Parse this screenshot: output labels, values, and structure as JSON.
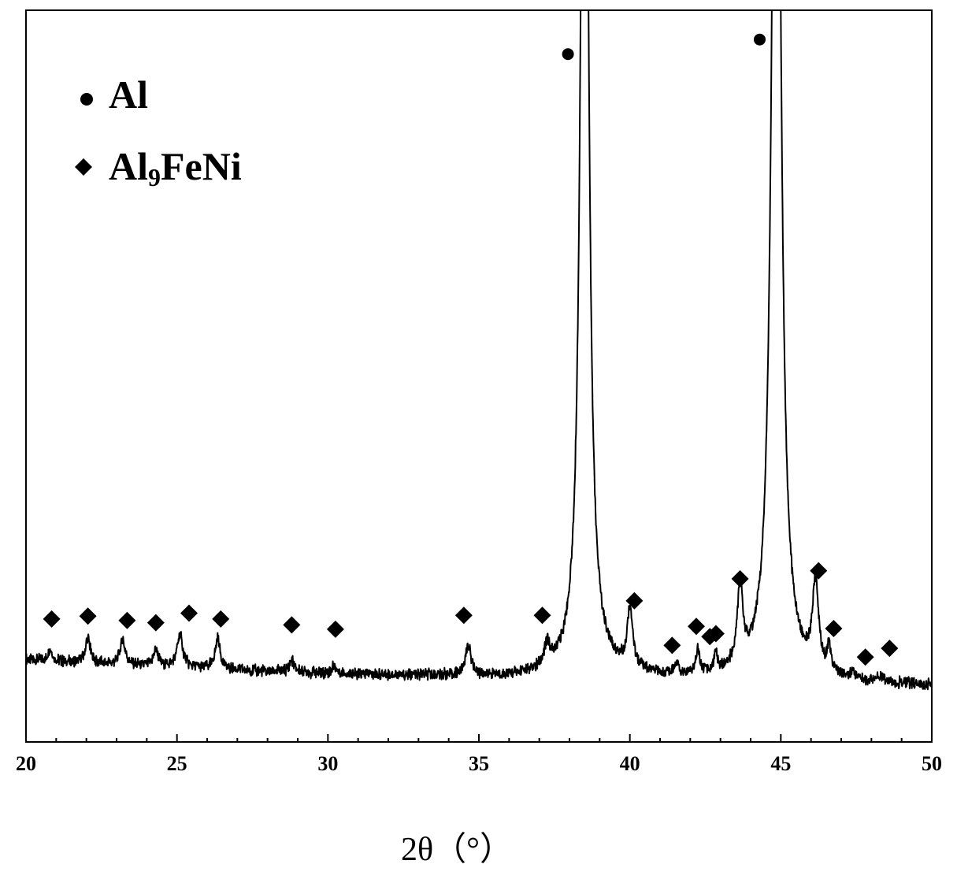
{
  "chart_data": {
    "type": "line",
    "title": "",
    "xlabel": "2θ（°）",
    "ylabel": "",
    "xlim": [
      20,
      50
    ],
    "ylim": [
      0,
      100
    ],
    "x_ticks": [
      20,
      25,
      30,
      35,
      40,
      45,
      50
    ],
    "x_minor_step": 1,
    "y_ticks_visible": false,
    "grid": false,
    "legend_position": "top-left",
    "legend": [
      {
        "marker": "circle",
        "label": "Al",
        "label_parts": [
          "Al"
        ]
      },
      {
        "marker": "diamond",
        "label": "Al9FeNi",
        "label_parts": [
          "Al",
          "9",
          "FeNi"
        ]
      }
    ],
    "background": [
      [
        20.0,
        11.2
      ],
      [
        21.0,
        11.0
      ],
      [
        22.0,
        10.8
      ],
      [
        23.0,
        10.5
      ],
      [
        24.0,
        10.3
      ],
      [
        25.0,
        10.2
      ],
      [
        26.0,
        10.0
      ],
      [
        27.0,
        9.8
      ],
      [
        28.0,
        9.6
      ],
      [
        29.0,
        9.5
      ],
      [
        30.0,
        9.3
      ],
      [
        31.0,
        9.2
      ],
      [
        32.0,
        9.1
      ],
      [
        33.0,
        9.0
      ],
      [
        34.0,
        9.0
      ],
      [
        35.0,
        8.9
      ],
      [
        36.0,
        8.8
      ],
      [
        37.0,
        8.8
      ],
      [
        38.0,
        9.0
      ],
      [
        38.6,
        9.6
      ],
      [
        39.0,
        9.4
      ],
      [
        40.0,
        9.0
      ],
      [
        41.0,
        8.7
      ],
      [
        42.0,
        8.6
      ],
      [
        43.0,
        8.6
      ],
      [
        44.0,
        8.5
      ],
      [
        44.8,
        8.8
      ],
      [
        45.5,
        8.6
      ],
      [
        46.0,
        8.3
      ],
      [
        47.0,
        8.1
      ],
      [
        48.0,
        7.9
      ],
      [
        49.0,
        7.8
      ],
      [
        50.0,
        7.7
      ]
    ],
    "peaks": [
      {
        "x": 20.8,
        "height": 1.6,
        "width": 0.08
      },
      {
        "x": 22.05,
        "height": 3.5,
        "width": 0.09
      },
      {
        "x": 23.2,
        "height": 3.6,
        "width": 0.1
      },
      {
        "x": 24.3,
        "height": 2.3,
        "width": 0.1
      },
      {
        "x": 25.1,
        "height": 4.4,
        "width": 0.11
      },
      {
        "x": 26.35,
        "height": 4.2,
        "width": 0.1
      },
      {
        "x": 28.8,
        "height": 1.6,
        "width": 0.09
      },
      {
        "x": 30.2,
        "height": 1.2,
        "width": 0.08
      },
      {
        "x": 34.65,
        "height": 4.2,
        "width": 0.11
      },
      {
        "x": 37.25,
        "height": 3.0,
        "width": 0.12
      },
      {
        "x": 38.5,
        "height": 170,
        "width": 0.14
      },
      {
        "x": 40.0,
        "height": 8.0,
        "width": 0.11
      },
      {
        "x": 41.55,
        "height": 1.6,
        "width": 0.07
      },
      {
        "x": 42.25,
        "height": 3.5,
        "width": 0.07
      },
      {
        "x": 42.85,
        "height": 2.4,
        "width": 0.07
      },
      {
        "x": 43.65,
        "height": 10.8,
        "width": 0.11
      },
      {
        "x": 44.85,
        "height": 170,
        "width": 0.16
      },
      {
        "x": 46.15,
        "height": 11.8,
        "width": 0.12
      },
      {
        "x": 46.6,
        "height": 3.5,
        "width": 0.07
      },
      {
        "x": 47.4,
        "height": 1.0,
        "width": 0.1
      },
      {
        "x": 48.3,
        "height": 0.8,
        "width": 0.1
      }
    ],
    "al_markers": [
      {
        "x": 37.95,
        "y": 94.0
      },
      {
        "x": 44.3,
        "y": 96.0
      }
    ],
    "al9feni_markers": [
      {
        "x": 20.85,
        "y": 16.8
      },
      {
        "x": 22.05,
        "y": 17.2
      },
      {
        "x": 23.35,
        "y": 16.6
      },
      {
        "x": 24.3,
        "y": 16.3
      },
      {
        "x": 25.4,
        "y": 17.6
      },
      {
        "x": 26.45,
        "y": 16.8
      },
      {
        "x": 28.8,
        "y": 16.0
      },
      {
        "x": 30.25,
        "y": 15.4
      },
      {
        "x": 34.5,
        "y": 17.3
      },
      {
        "x": 37.1,
        "y": 17.3
      },
      {
        "x": 40.15,
        "y": 19.3
      },
      {
        "x": 41.4,
        "y": 13.2
      },
      {
        "x": 42.2,
        "y": 15.8
      },
      {
        "x": 42.65,
        "y": 14.4
      },
      {
        "x": 42.85,
        "y": 14.8
      },
      {
        "x": 43.65,
        "y": 22.3
      },
      {
        "x": 46.25,
        "y": 23.4
      },
      {
        "x": 46.75,
        "y": 15.5
      },
      {
        "x": 47.8,
        "y": 11.6
      },
      {
        "x": 48.6,
        "y": 12.8
      }
    ]
  }
}
